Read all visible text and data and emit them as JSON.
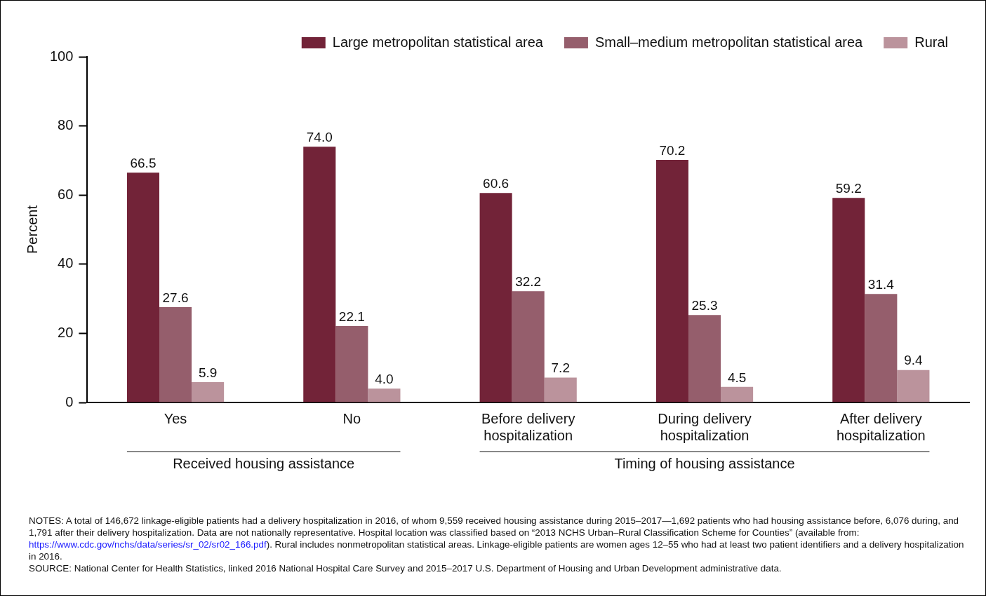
{
  "chart_data": {
    "type": "bar",
    "ylabel": "Percent",
    "categories": [
      "Yes",
      "No",
      "Before delivery hospitalization",
      "During delivery hospitalization",
      "After delivery hospitalization"
    ],
    "series": [
      {
        "name": "Large metropolitan statistical area",
        "color": "#722338",
        "values": [
          66.5,
          74.0,
          60.6,
          70.2,
          59.2
        ],
        "value_labels": [
          "66.5",
          "74.0",
          "60.6",
          "70.2",
          "59.2"
        ]
      },
      {
        "name": "Small–medium metropolitan statistical area",
        "color": "#955e6c",
        "values": [
          27.6,
          22.1,
          32.2,
          25.3,
          31.4
        ],
        "value_labels": [
          "27.6",
          "22.1",
          "32.2",
          "25.3",
          "31.4"
        ]
      },
      {
        "name": "Rural",
        "color": "#bb939c",
        "values": [
          5.9,
          4.0,
          7.2,
          4.5,
          9.4
        ],
        "value_labels": [
          "5.9",
          "4.0",
          "7.2",
          "4.5",
          "9.4"
        ]
      }
    ],
    "ylim": [
      0,
      100
    ],
    "yticks": [
      0,
      20,
      40,
      60,
      80,
      100
    ],
    "grid": false,
    "legend": "top right",
    "annotations": [
      "Received housing assistance",
      "Timing of housing assistance",
      "NOTES: A total of 146,672 linkage-eligible patients had a delivery hospitalization in 2016, of whom 9,559 received housing assistance during 2015–2017—1,692 patients who had housing assistance before, 6,076 during, and 1,791 after their delivery hospitalization. Data are not nationally representative. Hospital location was classified based on “2013 NCHS Urban–Rural Classification Scheme for Counties” (available from: https://www.cdc.gov/nchs/data/series/sr_02/sr02_166.pdf). Rural includes nonmetropolitan statistical areas. Linkage-eligible patients are women ages 12–55 who had at least two patient identifiers and a delivery hospitalization in 2016.",
      "SOURCE: National Center for Health Statistics, linked 2016 National Hospital Care Survey and 2015–2017 U.S. Department of Housing and Urban Development administrative data."
    ]
  }
}
